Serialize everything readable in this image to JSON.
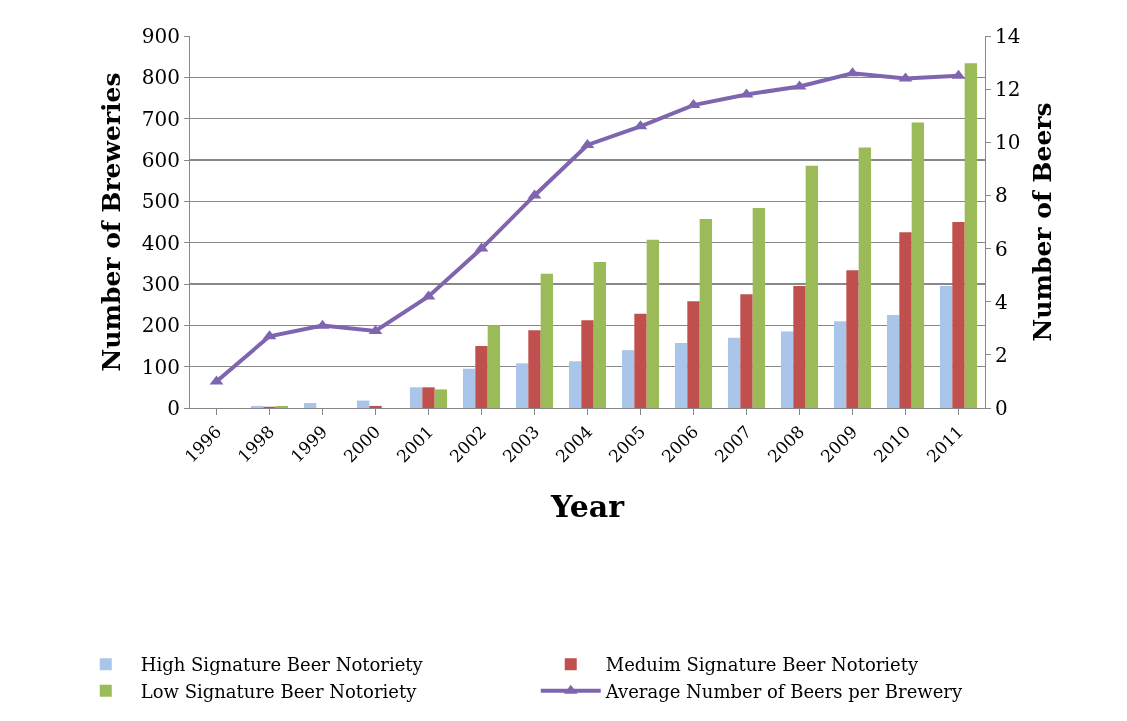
{
  "chart_data": {
    "type": "bar",
    "xlabel": "Year",
    "ylabel": "Number of Breweries",
    "y2label": "Number of Beers",
    "categories": [
      "1996",
      "1998",
      "1999",
      "2000",
      "2001",
      "2002",
      "2003",
      "2004",
      "2005",
      "2006",
      "2007",
      "2008",
      "2009",
      "2010",
      "2011"
    ],
    "series": [
      {
        "name": "High Signature Beer Notoriety",
        "color": "#a9c6ea",
        "values": [
          0,
          5,
          12,
          18,
          50,
          95,
          108,
          113,
          140,
          157,
          170,
          185,
          210,
          225,
          295
        ]
      },
      {
        "name": "Meduim Signature Beer Notoriety",
        "color": "#c0504d",
        "values": [
          0,
          3,
          null,
          5,
          50,
          150,
          188,
          212,
          228,
          258,
          275,
          295,
          333,
          425,
          450
        ]
      },
      {
        "name": "Low Signature Beer Notoriety",
        "color": "#9bbb59",
        "values": [
          0,
          5,
          0,
          0,
          45,
          200,
          325,
          353,
          407,
          457,
          484,
          586,
          630,
          691,
          834
        ]
      },
      {
        "name": "Average Number of Beers per Brewery",
        "type": "line",
        "axis": "y2",
        "color": "#7f65b0",
        "marker": "triangle",
        "values": [
          1.0,
          2.7,
          3.1,
          2.9,
          4.2,
          6.0,
          8.0,
          9.9,
          10.6,
          11.4,
          11.8,
          12.1,
          12.6,
          12.4,
          12.5
        ]
      }
    ],
    "ylim": [
      0,
      900
    ],
    "yticks": [
      0,
      100,
      200,
      300,
      400,
      500,
      600,
      700,
      800,
      900
    ],
    "y2lim": [
      0,
      14
    ],
    "y2ticks": [
      0,
      2,
      4,
      6,
      8,
      10,
      12,
      14
    ],
    "grid": "y",
    "legend": "bottom"
  }
}
